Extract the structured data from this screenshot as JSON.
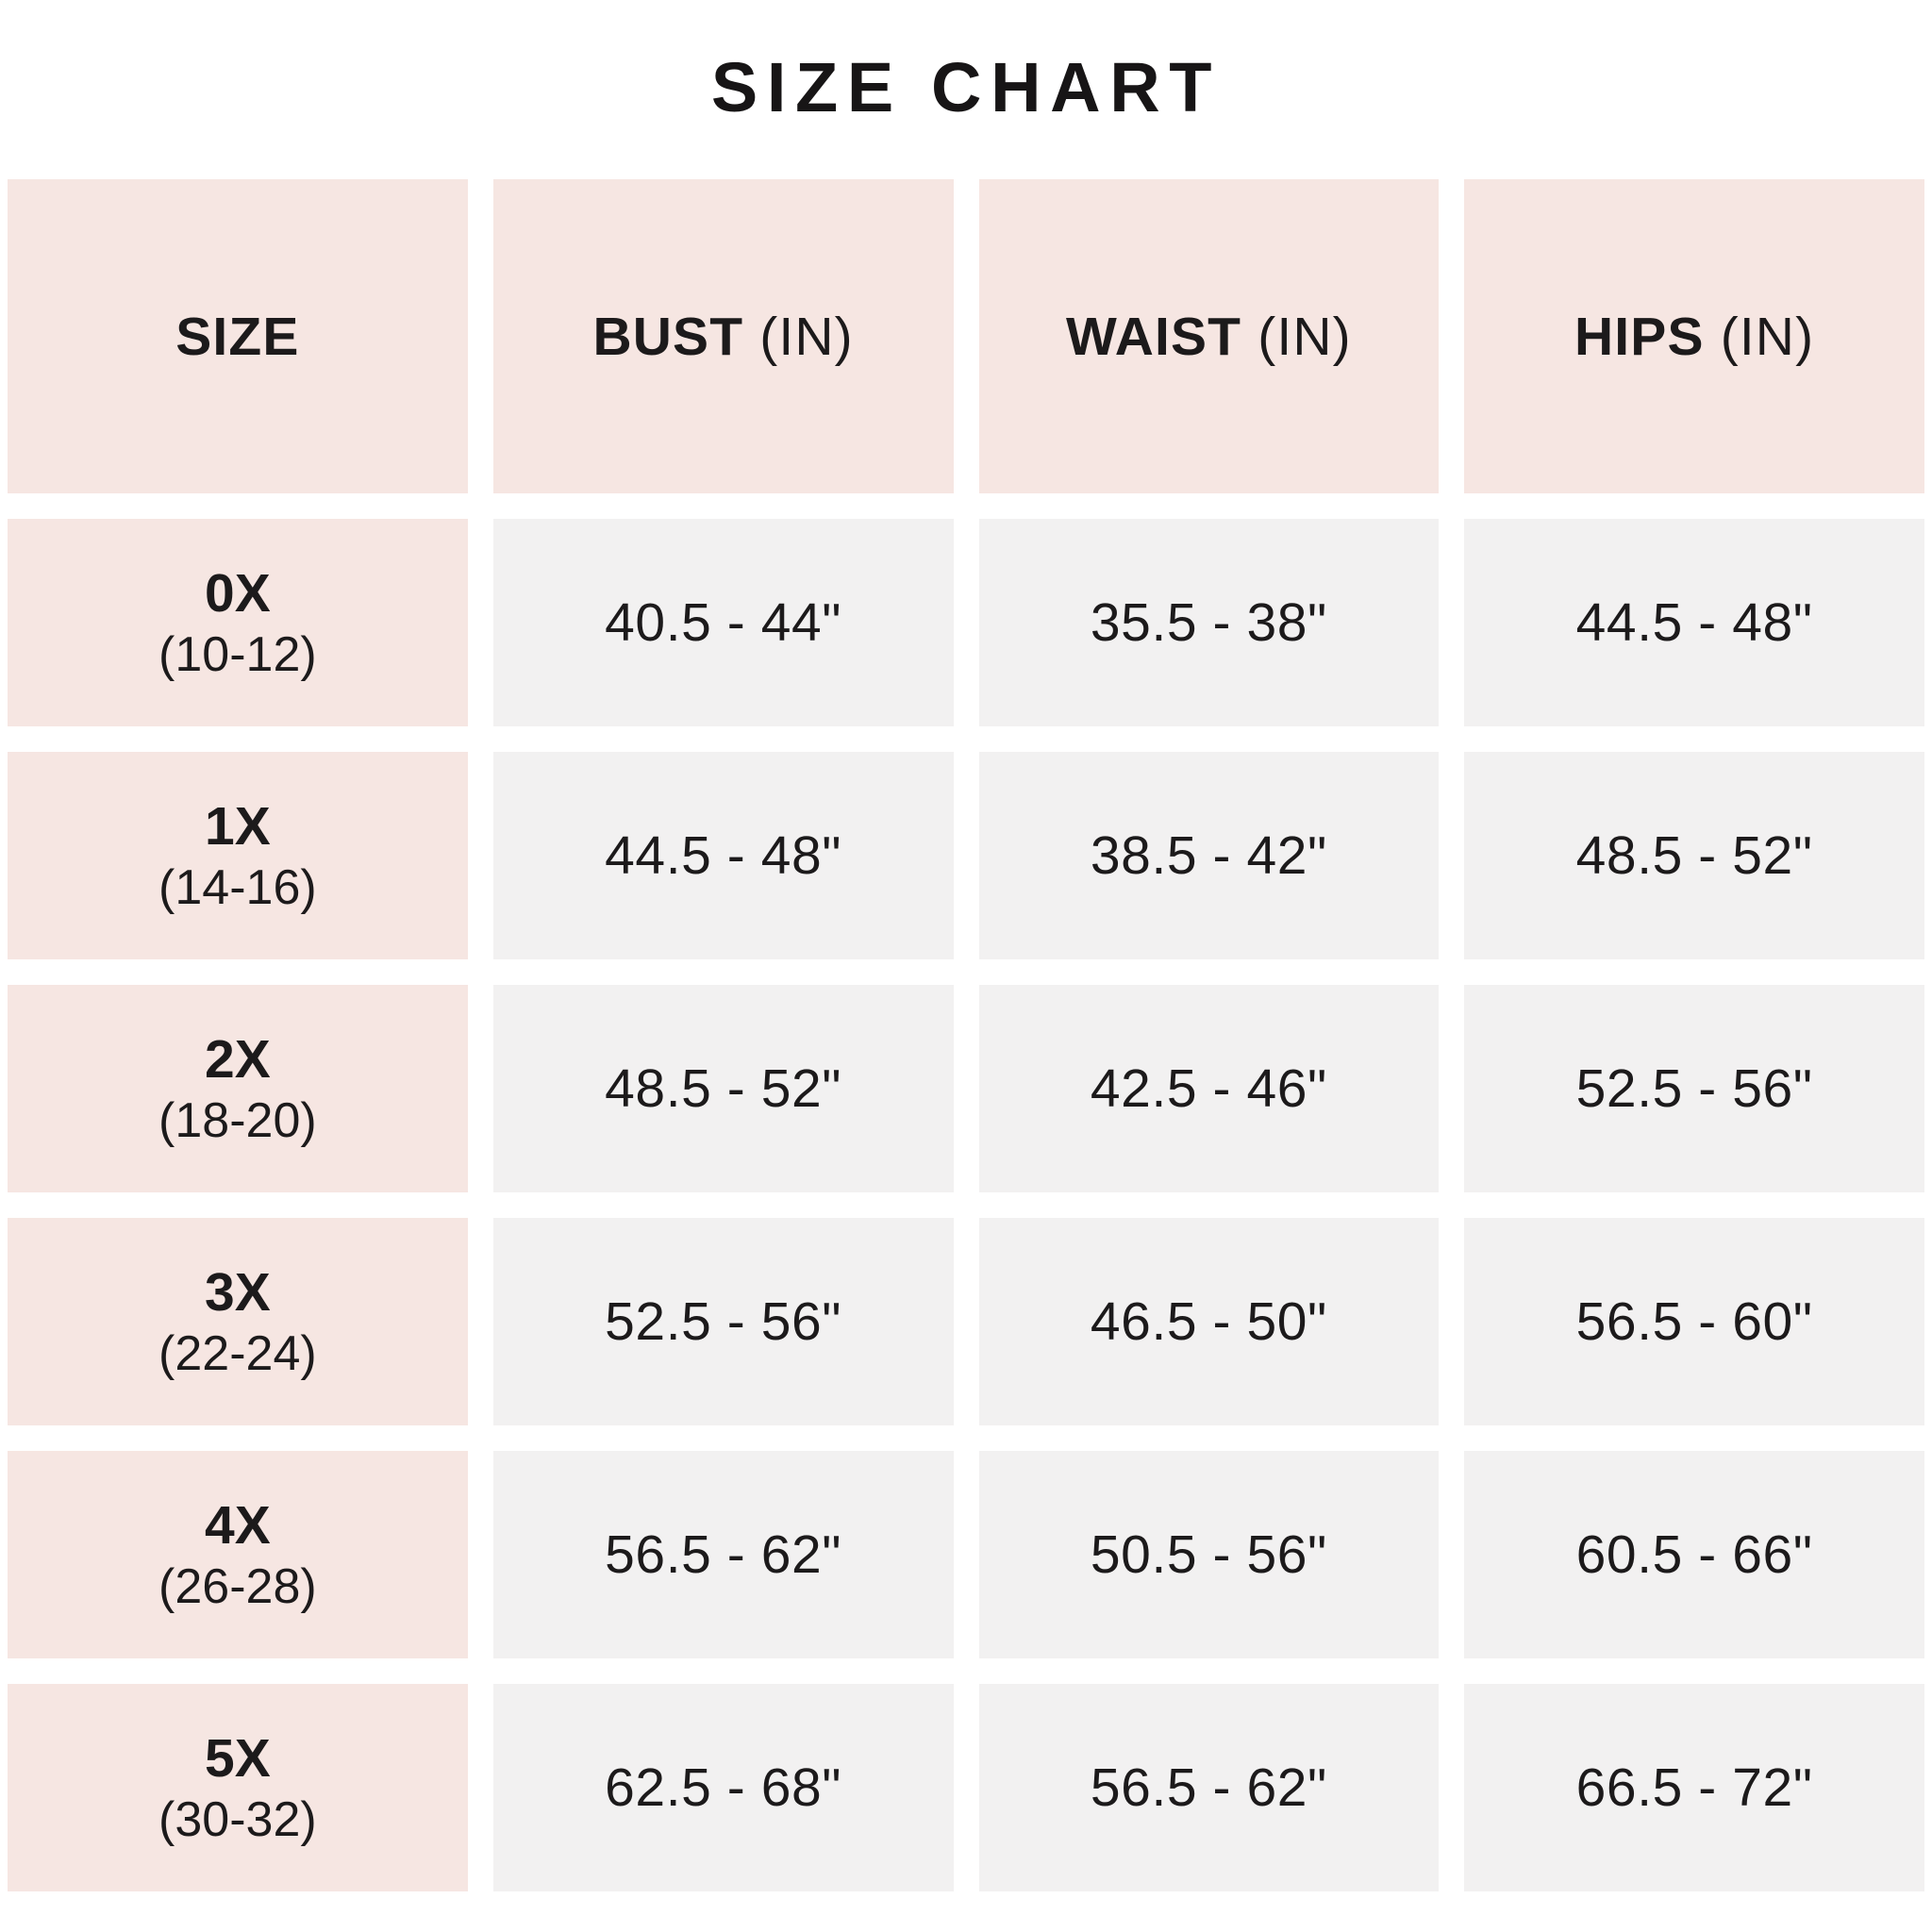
{
  "title": "SIZE CHART",
  "colors": {
    "header_and_size_bg": "#f6e6e2",
    "value_cell_bg": "#f2f1f1",
    "text": "#1c1a1b",
    "page_bg": "#ffffff"
  },
  "table": {
    "columns": [
      {
        "label": "SIZE",
        "unit": ""
      },
      {
        "label": "BUST",
        "unit": "(IN)"
      },
      {
        "label": "WAIST",
        "unit": "(IN)"
      },
      {
        "label": "HIPS",
        "unit": "(IN)"
      }
    ],
    "rows": [
      {
        "size": "0X",
        "range": "(10-12)",
        "bust": "40.5 - 44\"",
        "waist": "35.5 - 38\"",
        "hips": "44.5 - 48\""
      },
      {
        "size": "1X",
        "range": "(14-16)",
        "bust": "44.5 - 48\"",
        "waist": "38.5 - 42\"",
        "hips": "48.5 - 52\""
      },
      {
        "size": "2X",
        "range": "(18-20)",
        "bust": "48.5 - 52\"",
        "waist": "42.5 - 46\"",
        "hips": "52.5 - 56\""
      },
      {
        "size": "3X",
        "range": "(22-24)",
        "bust": "52.5 - 56\"",
        "waist": "46.5 - 50\"",
        "hips": "56.5 - 60\""
      },
      {
        "size": "4X",
        "range": "(26-28)",
        "bust": "56.5 - 62\"",
        "waist": "50.5 - 56\"",
        "hips": "60.5 - 66\""
      },
      {
        "size": "5X",
        "range": "(30-32)",
        "bust": "62.5 - 68\"",
        "waist": "56.5 - 62\"",
        "hips": "66.5 - 72\""
      }
    ]
  },
  "chart_data": {
    "type": "table",
    "title": "SIZE CHART",
    "columns": [
      "SIZE",
      "BUST (IN)",
      "WAIST (IN)",
      "HIPS (IN)"
    ],
    "rows": [
      [
        "0X (10-12)",
        "40.5 - 44\"",
        "35.5 - 38\"",
        "44.5 - 48\""
      ],
      [
        "1X (14-16)",
        "44.5 - 48\"",
        "38.5 - 42\"",
        "48.5 - 52\""
      ],
      [
        "2X (18-20)",
        "48.5 - 52\"",
        "42.5 - 46\"",
        "52.5 - 56\""
      ],
      [
        "3X (22-24)",
        "52.5 - 56\"",
        "46.5 - 50\"",
        "56.5 - 60\""
      ],
      [
        "4X (26-28)",
        "56.5 - 62\"",
        "50.5 - 56\"",
        "60.5 - 66\""
      ],
      [
        "5X (30-32)",
        "62.5 - 68\"",
        "56.5 - 62\"",
        "66.5 - 72\""
      ]
    ],
    "layout": {
      "header_fill": "#f6e6e2",
      "row_label_fill": "#f6e6e2",
      "value_fill": "#f2f1f1",
      "grid": "white gaps between cells"
    }
  }
}
